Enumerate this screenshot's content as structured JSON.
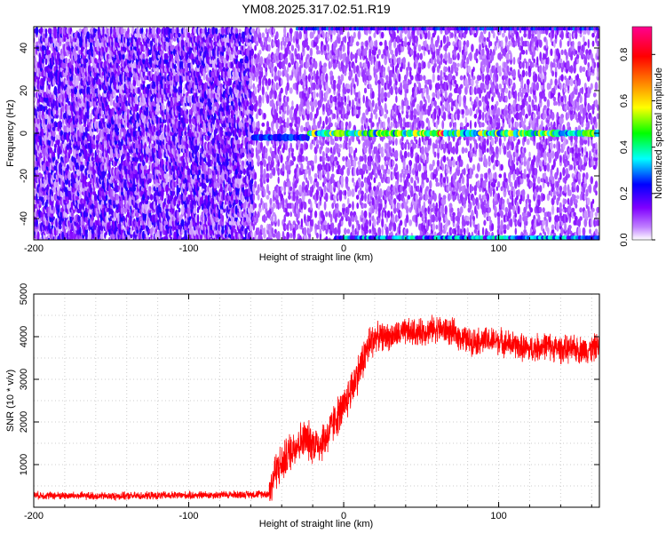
{
  "title": "YM08.2025.317.02.51.R19",
  "chart_data": [
    {
      "type": "heatmap",
      "title": "YM08.2025.317.02.51.R19",
      "xlabel": "Height of straight line (km)",
      "ylabel": "Frequency (Hz)",
      "xlim": [
        -200,
        165
      ],
      "ylim": [
        -50,
        50
      ],
      "x_ticks": [
        -200,
        -100,
        0,
        100
      ],
      "y_ticks": [
        -40,
        -20,
        0,
        20,
        40
      ],
      "colorbar": {
        "label": "Normalized spectral amplitude",
        "range": [
          0,
          0.92
        ],
        "ticks": [
          0.0,
          0.2,
          0.4,
          0.6,
          0.8
        ],
        "colormap": "rainbow",
        "colors": [
          "#ffffff",
          "#8000ff",
          "#0000ff",
          "#00ffff",
          "#00ff00",
          "#ffff00",
          "#ff8000",
          "#ff0000",
          "#ff00a0"
        ]
      },
      "features": [
        {
          "name": "strong signal band",
          "frequency_hz": 0,
          "x_range": [
            -58,
            165
          ],
          "amplitude": "0.3-0.7"
        },
        {
          "name": "band segment",
          "frequency_hz": -2,
          "x_range": [
            -58,
            -22
          ],
          "amplitude": "0.2-0.3"
        },
        {
          "name": "noise floor",
          "x_range": [
            -200,
            -58
          ],
          "amplitude": "0.05-0.2"
        },
        {
          "name": "edge band",
          "frequency_hz": -49,
          "x_range": [
            -5,
            165
          ],
          "amplitude": "0.2-0.4"
        }
      ]
    },
    {
      "type": "line",
      "xlabel": "Height of straight line (km)",
      "ylabel": "SNR (10 * v/v)",
      "xlim": [
        -200,
        165
      ],
      "ylim": [
        0,
        5000
      ],
      "x_ticks": [
        -200,
        -100,
        0,
        100
      ],
      "y_ticks": [
        1000,
        2000,
        3000,
        4000,
        5000
      ],
      "grid": true,
      "series": [
        {
          "color": "#ff0000",
          "x": [
            -200,
            -150,
            -100,
            -60,
            -48,
            -44,
            -40,
            -35,
            -30,
            -25,
            -20,
            -15,
            -10,
            -5,
            0,
            5,
            10,
            15,
            20,
            30,
            40,
            50,
            60,
            70,
            80,
            90,
            100,
            110,
            120,
            130,
            140,
            150,
            160,
            165
          ],
          "values": [
            280,
            260,
            280,
            300,
            320,
            900,
            1000,
            1300,
            1500,
            1600,
            1500,
            1500,
            1700,
            2100,
            2300,
            2800,
            3200,
            3700,
            4000,
            4000,
            4100,
            4100,
            4200,
            4100,
            3900,
            3900,
            3900,
            3800,
            3700,
            3800,
            3700,
            3700,
            3700,
            3800
          ]
        }
      ]
    }
  ]
}
